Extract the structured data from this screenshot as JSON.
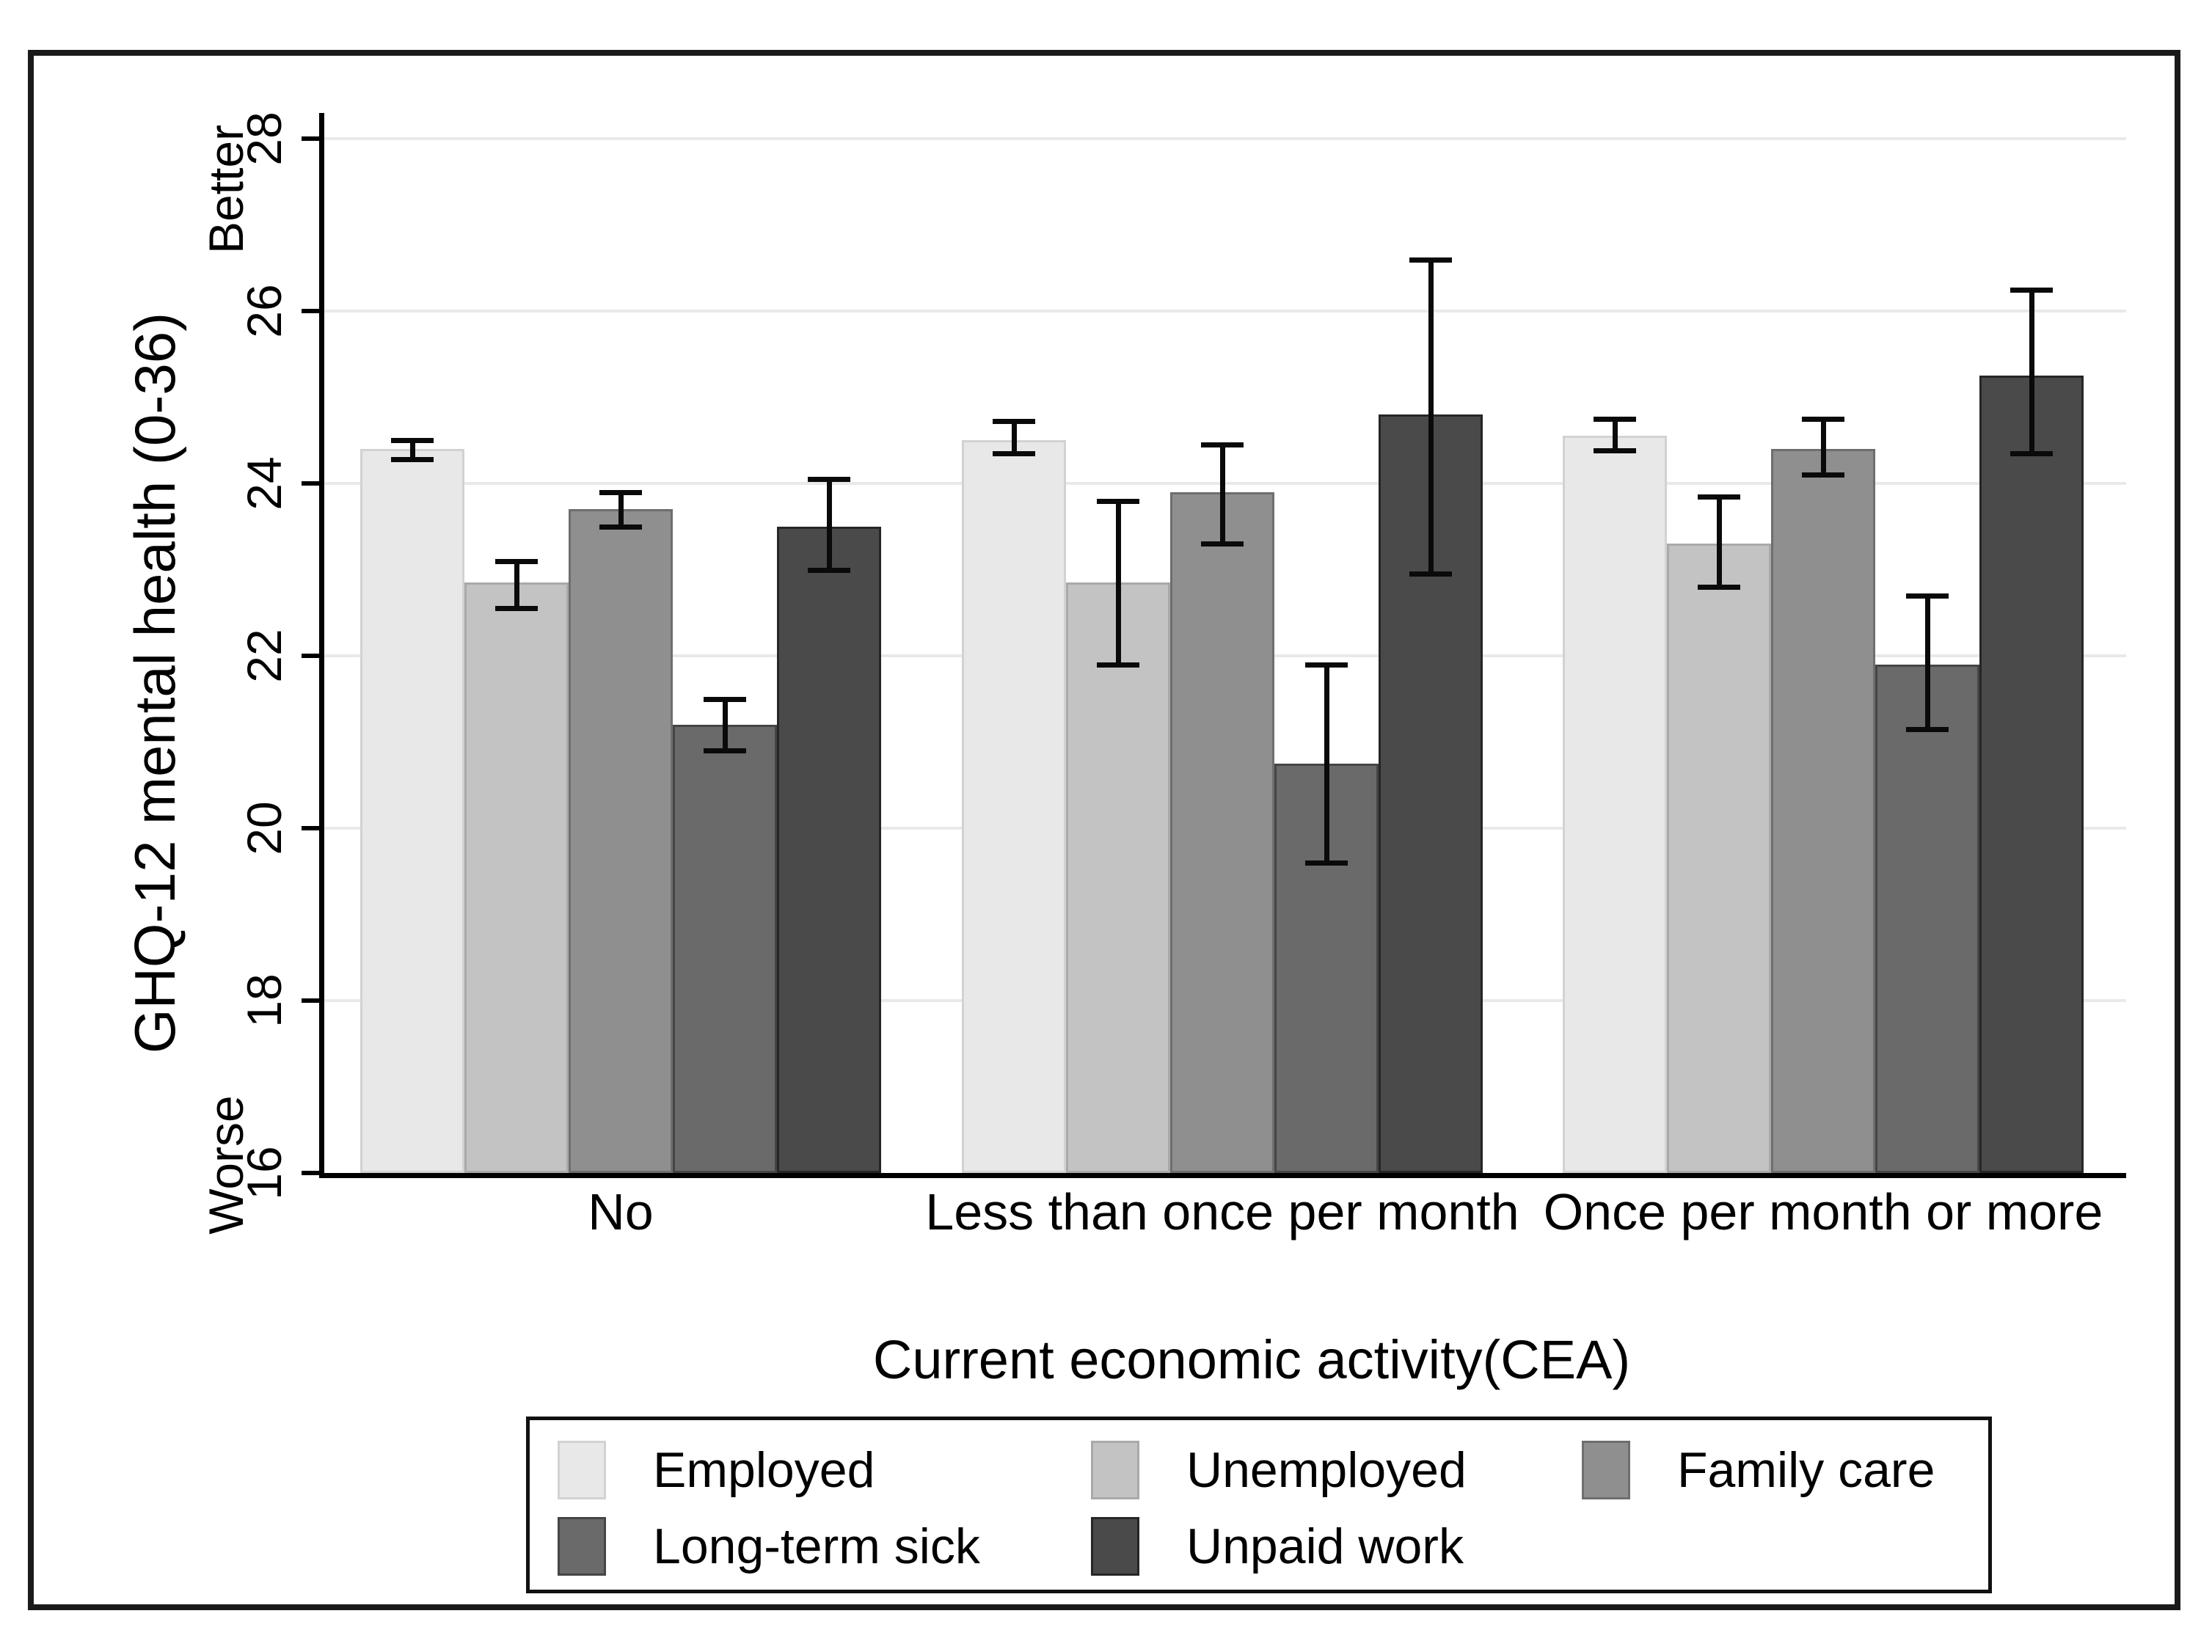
{
  "chart_data": {
    "type": "bar",
    "title": "",
    "xlabel": "Current economic activity(CEA)",
    "ylabel": "GHQ-12 mental health (0-36)",
    "y_axis": {
      "min": 16,
      "max": 28,
      "tick_step": 2,
      "tick_labels": [
        "16",
        "18",
        "20",
        "22",
        "24",
        "26",
        "28"
      ],
      "annotation_top": "Better",
      "annotation_bottom": "Worse",
      "grid": true
    },
    "categories": [
      "No",
      "Less than once per month",
      "Once per month or more"
    ],
    "series": [
      {
        "name": "Employed",
        "color": "#e8e8e8",
        "border_color": "#d2d2d2",
        "values": [
          24.4,
          24.5,
          24.55
        ],
        "ci_low": [
          24.28,
          24.35,
          24.38
        ],
        "ci_high": [
          24.5,
          24.72,
          24.75
        ]
      },
      {
        "name": "Unemployed",
        "color": "#c3c3c3",
        "border_color": "#a9a9a9",
        "values": [
          22.85,
          22.85,
          23.3
        ],
        "ci_low": [
          22.55,
          21.9,
          22.8
        ],
        "ci_high": [
          23.1,
          23.8,
          23.85
        ]
      },
      {
        "name": "Family care",
        "color": "#8f8f8f",
        "border_color": "#6e6e6e",
        "values": [
          23.7,
          23.9,
          24.4
        ],
        "ci_low": [
          23.5,
          23.3,
          24.1
        ],
        "ci_high": [
          23.9,
          24.45,
          24.75
        ]
      },
      {
        "name": "Long-term sick",
        "color": "#6a6a6a",
        "border_color": "#454545",
        "values": [
          21.2,
          20.75,
          21.9
        ],
        "ci_low": [
          20.9,
          19.6,
          21.15
        ],
        "ci_high": [
          21.5,
          21.9,
          22.7
        ]
      },
      {
        "name": "Unpaid work",
        "color": "#4a4a4a",
        "border_color": "#262626",
        "values": [
          23.5,
          24.8,
          25.25
        ],
        "ci_low": [
          23.0,
          22.95,
          24.35
        ],
        "ci_high": [
          24.05,
          26.6,
          26.25
        ]
      }
    ],
    "legend_position": "bottom",
    "error_bar_color": "#0a0a0a",
    "grid_color": "#e9e9e9"
  }
}
